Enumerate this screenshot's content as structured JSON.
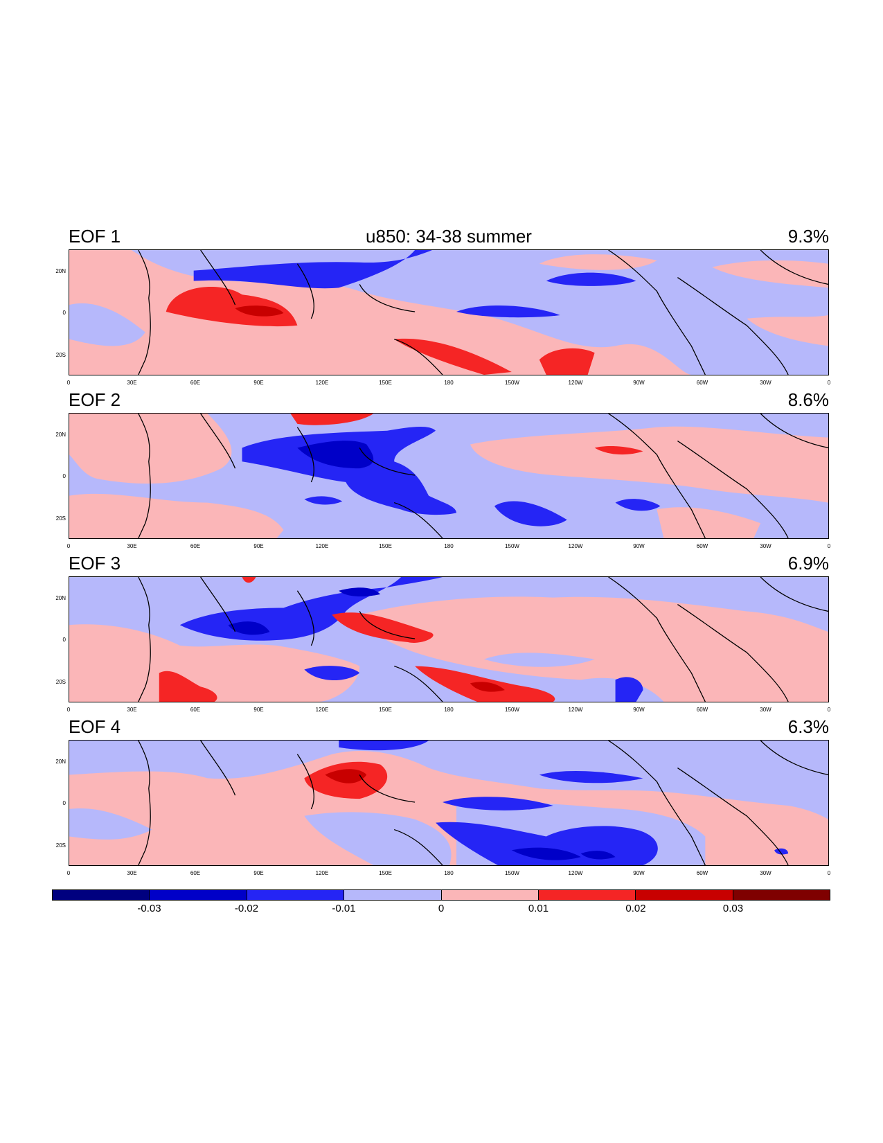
{
  "title": "u850: 34-38 summer",
  "colors": {
    "neg4": "#00007f",
    "neg3": "#0000c8",
    "neg2": "#2525f5",
    "neg1": "#b6b8fb",
    "pos1": "#fbb6b8",
    "pos2": "#f52525",
    "pos3": "#c80000",
    "pos4": "#7f0000"
  },
  "lon_ticks": [
    "0",
    "30E",
    "60E",
    "90E",
    "120E",
    "150E",
    "180",
    "150W",
    "120W",
    "90W",
    "60W",
    "30W",
    "0"
  ],
  "lat_ticks": [
    "20N",
    "0",
    "20S"
  ],
  "panels": [
    {
      "label": "EOF 1",
      "variance": "9.3%"
    },
    {
      "label": "EOF 2",
      "variance": "8.6%"
    },
    {
      "label": "EOF 3",
      "variance": "6.9%"
    },
    {
      "label": "EOF 4",
      "variance": "6.3%"
    }
  ],
  "colorbar": {
    "labels": [
      "-0.03",
      "-0.02",
      "-0.01",
      "0",
      "0.01",
      "0.02",
      "0.03"
    ]
  }
}
